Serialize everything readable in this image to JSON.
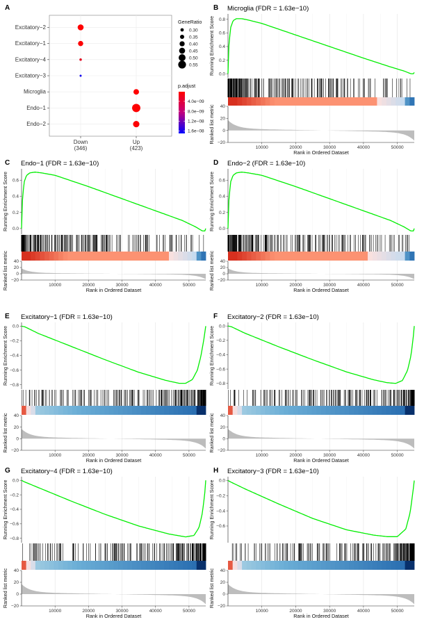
{
  "panels": {
    "A": {
      "letter": "A"
    },
    "B": {
      "letter": "B",
      "cell": "Microglia",
      "fdr": "FDR = 1.63e−10"
    },
    "C": {
      "letter": "C",
      "cell": "Endo−1",
      "fdr": "FDR = 1.63e−10"
    },
    "D": {
      "letter": "D",
      "cell": "Endo−2",
      "fdr": "FDR = 1.63e−10"
    },
    "E": {
      "letter": "E",
      "cell": "Excitatory−1",
      "fdr": "FDR = 1.63e−10"
    },
    "F": {
      "letter": "F",
      "cell": "Excitatory−2",
      "fdr": "FDR = 1.63e−10"
    },
    "G": {
      "letter": "G",
      "cell": "Excitatory−4",
      "fdr": "FDR = 1.63e−10"
    },
    "H": {
      "letter": "H",
      "cell": "Excitatory−3",
      "fdr": "FDR = 1.63e−10"
    }
  },
  "chart_data": [
    {
      "type": "scatter",
      "panel": "A",
      "kind": "dotplot",
      "x_categories": [
        "Down\n(346)",
        "Up\n(423)"
      ],
      "y_categories": [
        "Excitatory−2",
        "Excitatory−1",
        "Excitatory−4",
        "Excitatory−3",
        "Microglia",
        "Endo−1",
        "Endo−2"
      ],
      "points": [
        {
          "x": "Down\n(346)",
          "y": "Excitatory−2",
          "gene_ratio": 0.42,
          "p_adjust": 1e-10
        },
        {
          "x": "Down\n(346)",
          "y": "Excitatory−1",
          "gene_ratio": 0.38,
          "p_adjust": 3e-10
        },
        {
          "x": "Down\n(346)",
          "y": "Excitatory−4",
          "gene_ratio": 0.24,
          "p_adjust": 2e-09
        },
        {
          "x": "Down\n(346)",
          "y": "Excitatory−3",
          "gene_ratio": 0.22,
          "p_adjust": 1.6e-08
        },
        {
          "x": "Up\n(423)",
          "y": "Microglia",
          "gene_ratio": 0.4,
          "p_adjust": 1e-10
        },
        {
          "x": "Up\n(423)",
          "y": "Endo−1",
          "gene_ratio": 0.54,
          "p_adjust": 2e-10
        },
        {
          "x": "Up\n(423)",
          "y": "Endo−2",
          "gene_ratio": 0.44,
          "p_adjust": 3e-10
        }
      ],
      "size_legend": {
        "title": "GeneRatio",
        "values": [
          0.3,
          0.35,
          0.4,
          0.45,
          0.5,
          0.55
        ],
        "labels": [
          "0.30",
          "0.35",
          "0.40",
          "0.45",
          "0.50",
          "0.55"
        ]
      },
      "color_legend": {
        "title": "p.adjust",
        "range": [
          1e-10,
          1.7e-08
        ],
        "ticks": [
          4e-09,
          8e-09,
          1.2e-08,
          1.6e-08
        ],
        "tick_labels": [
          "4.0e−09",
          "8.0e−09",
          "1.2e−08",
          "1.6e−08"
        ],
        "low_color": "#ff0000",
        "high_color": "#0000ff"
      }
    },
    {
      "type": "line",
      "panel": "B",
      "title": "Microglia (FDR = 1.63e−10)",
      "direction": "up",
      "xlabel": "Rank in Ordered Dataset",
      "ylabel_es": "Running Enrichment Score",
      "ylabel_rank": "Ranked list metric",
      "xlim": [
        0,
        55000
      ],
      "x_ticks": [
        10000,
        20000,
        30000,
        40000,
        50000
      ],
      "ylim": [
        -0.06,
        0.88
      ],
      "y_ticks": [
        0.0,
        0.2,
        0.4,
        0.6,
        0.8
      ],
      "y_tick_labels": [
        "0.0",
        "0.2",
        "0.4",
        "0.6",
        "0.8"
      ],
      "es_curve": {
        "x": [
          0,
          300,
          800,
          1500,
          2500,
          4000,
          6000,
          10000,
          20000,
          30000,
          40000,
          48000,
          52000,
          54000,
          54800,
          55000
        ],
        "y": [
          0.0,
          0.45,
          0.68,
          0.78,
          0.81,
          0.81,
          0.79,
          0.74,
          0.57,
          0.4,
          0.23,
          0.1,
          0.04,
          0.0,
          0.0,
          0.02
        ]
      },
      "rank_metric": {
        "ylim": [
          -20,
          40
        ],
        "y_ticks": [
          -20,
          0,
          20,
          40
        ]
      },
      "heat_split": 0.8,
      "hits_seed": 11
    },
    {
      "type": "line",
      "panel": "C",
      "title": "Endo−1 (FDR = 1.63e−10)",
      "direction": "up",
      "xlabel": "Rank in Ordered Dataset",
      "ylabel_es": "Running Enrichment Score",
      "ylabel_rank": "Ranked list metric",
      "xlim": [
        0,
        55000
      ],
      "x_ticks": [
        10000,
        20000,
        30000,
        40000,
        50000
      ],
      "ylim": [
        -0.07,
        0.74
      ],
      "y_ticks": [
        0.0,
        0.2,
        0.4,
        0.6
      ],
      "y_tick_labels": [
        "0.0",
        "0.2",
        "0.4",
        "0.6"
      ],
      "es_curve": {
        "x": [
          0,
          300,
          800,
          1500,
          2500,
          4000,
          6000,
          10000,
          20000,
          30000,
          40000,
          48000,
          52000,
          54000,
          54800,
          55000
        ],
        "y": [
          0.0,
          0.38,
          0.58,
          0.66,
          0.69,
          0.7,
          0.69,
          0.66,
          0.52,
          0.37,
          0.22,
          0.1,
          0.02,
          -0.03,
          -0.03,
          0.0
        ]
      },
      "rank_metric": {
        "ylim": [
          -20,
          40
        ],
        "y_ticks": [
          -20,
          0,
          20,
          40
        ]
      },
      "heat_split": 0.8,
      "hits_seed": 23
    },
    {
      "type": "line",
      "panel": "D",
      "title": "Endo−2 (FDR = 1.63e−10)",
      "direction": "up",
      "xlabel": "Rank in Ordered Dataset",
      "ylabel_es": "Running Enrichment Score",
      "ylabel_rank": "Ranked list metric",
      "xlim": [
        0,
        55000
      ],
      "x_ticks": [
        10000,
        20000,
        30000,
        40000,
        50000
      ],
      "ylim": [
        -0.07,
        0.74
      ],
      "y_ticks": [
        0.0,
        0.2,
        0.4,
        0.6
      ],
      "y_tick_labels": [
        "0.0",
        "0.2",
        "0.4",
        "0.6"
      ],
      "es_curve": {
        "x": [
          0,
          300,
          800,
          1500,
          2500,
          4000,
          6000,
          10000,
          20000,
          30000,
          40000,
          48000,
          52000,
          54000,
          54800,
          55000
        ],
        "y": [
          0.0,
          0.38,
          0.58,
          0.66,
          0.69,
          0.7,
          0.69,
          0.66,
          0.52,
          0.37,
          0.22,
          0.1,
          0.02,
          -0.03,
          -0.03,
          0.0
        ]
      },
      "rank_metric": {
        "ylim": [
          -20,
          40
        ],
        "y_ticks": [
          -20,
          0,
          20,
          40
        ]
      },
      "heat_split": 0.75,
      "hits_seed": 37
    },
    {
      "type": "line",
      "panel": "E",
      "title": "Excitatory−1 (FDR = 1.63e−10)",
      "direction": "down",
      "xlabel": "Rank in Ordered Dataset",
      "ylabel_es": "Running Enrichment Score",
      "ylabel_rank": "Ranked list metric",
      "xlim": [
        0,
        55000
      ],
      "x_ticks": [
        10000,
        20000,
        30000,
        40000,
        50000
      ],
      "ylim": [
        -0.86,
        0.05
      ],
      "y_ticks": [
        -0.8,
        -0.6,
        -0.4,
        -0.2,
        0.0
      ],
      "y_tick_labels": [
        "−0.8",
        "−0.6",
        "−0.4",
        "−0.2",
        "0.0"
      ],
      "es_curve": {
        "x": [
          0,
          1000,
          5000,
          15000,
          25000,
          35000,
          43000,
          47000,
          49000,
          51000,
          52500,
          53500,
          54300,
          55000
        ],
        "y": [
          0.0,
          -0.01,
          -0.1,
          -0.28,
          -0.46,
          -0.63,
          -0.74,
          -0.78,
          -0.78,
          -0.73,
          -0.6,
          -0.42,
          -0.22,
          0.0
        ]
      },
      "rank_metric": {
        "ylim": [
          -20,
          40
        ],
        "y_ticks": [
          -20,
          0,
          20,
          40
        ]
      },
      "hits_seed": 51
    },
    {
      "type": "line",
      "panel": "F",
      "title": "Excitatory−2 (FDR = 1.63e−10)",
      "direction": "down",
      "xlabel": "Rank in Ordered Dataset",
      "ylabel_es": "Running Enrichment Score",
      "ylabel_rank": "Ranked list metric",
      "xlim": [
        0,
        55000
      ],
      "x_ticks": [
        10000,
        20000,
        30000,
        40000,
        50000
      ],
      "ylim": [
        -0.88,
        0.05
      ],
      "y_ticks": [
        -0.8,
        -0.6,
        -0.4,
        -0.2,
        0.0
      ],
      "y_tick_labels": [
        "−0.8",
        "−0.6",
        "−0.4",
        "−0.2",
        "0.0"
      ],
      "es_curve": {
        "x": [
          0,
          1000,
          5000,
          15000,
          25000,
          35000,
          43000,
          47000,
          49500,
          51500,
          53000,
          54000,
          54600,
          55000
        ],
        "y": [
          0.0,
          -0.01,
          -0.1,
          -0.29,
          -0.47,
          -0.64,
          -0.75,
          -0.79,
          -0.8,
          -0.76,
          -0.62,
          -0.42,
          -0.2,
          0.0
        ]
      },
      "rank_metric": {
        "ylim": [
          -20,
          40
        ],
        "y_ticks": [
          -20,
          0,
          20,
          40
        ]
      },
      "hits_seed": 67
    },
    {
      "type": "line",
      "panel": "G",
      "title": "Excitatory−4 (FDR = 1.63e−10)",
      "direction": "down",
      "xlabel": "Rank in Ordered Dataset",
      "ylabel_es": "Running Enrichment Score",
      "ylabel_rank": "Ranked list metric",
      "xlim": [
        0,
        55000
      ],
      "x_ticks": [
        10000,
        20000,
        30000,
        40000,
        50000
      ],
      "ylim": [
        -0.86,
        0.05
      ],
      "y_ticks": [
        -0.8,
        -0.6,
        -0.4,
        -0.2,
        0.0
      ],
      "y_tick_labels": [
        "−0.8",
        "−0.6",
        "−0.4",
        "−0.2",
        "0.0"
      ],
      "es_curve": {
        "x": [
          0,
          800,
          5000,
          15000,
          25000,
          35000,
          44000,
          49000,
          51500,
          53000,
          54000,
          54700,
          55000
        ],
        "y": [
          0.0,
          -0.02,
          -0.1,
          -0.29,
          -0.47,
          -0.63,
          -0.74,
          -0.78,
          -0.76,
          -0.65,
          -0.45,
          -0.18,
          0.0
        ]
      },
      "rank_metric": {
        "ylim": [
          -20,
          40
        ],
        "y_ticks": [
          -20,
          0,
          20,
          40
        ]
      },
      "hits_seed": 83
    },
    {
      "type": "line",
      "panel": "H",
      "title": "Excitatory−3 (FDR = 1.63e−10)",
      "direction": "down",
      "xlabel": "Rank in Ordered Dataset",
      "ylabel_es": "Running Enrichment Score",
      "ylabel_rank": "Ranked list metric",
      "xlim": [
        0,
        55000
      ],
      "x_ticks": [
        10000,
        20000,
        30000,
        40000,
        50000
      ],
      "ylim": [
        -0.82,
        0.05
      ],
      "y_ticks": [
        -0.6,
        -0.4,
        -0.2,
        0.0
      ],
      "y_tick_labels": [
        "−0.6",
        "−0.4",
        "−0.2",
        "0.0"
      ],
      "es_curve": {
        "x": [
          0,
          800,
          5000,
          15000,
          25000,
          35000,
          43000,
          47000,
          50000,
          52500,
          53800,
          54600,
          55000
        ],
        "y": [
          0.0,
          -0.02,
          -0.11,
          -0.31,
          -0.5,
          -0.65,
          -0.72,
          -0.74,
          -0.74,
          -0.64,
          -0.42,
          -0.15,
          0.0
        ]
      },
      "rank_metric": {
        "ylim": [
          -20,
          40
        ],
        "y_ticks": [
          -20,
          0,
          20,
          40
        ]
      },
      "hits_seed": 97
    }
  ],
  "colors": {
    "es_line": "#00ee00",
    "rank_fill": "#bdbdbd",
    "hit": "#000000",
    "heat_red": "#d7301f",
    "heat_salmon": "#fc9272",
    "heat_blue": "#2166ac",
    "heat_lightblue": "#6baed6",
    "grid": "#ebebeb",
    "vgrid": "#dcdcdc"
  }
}
